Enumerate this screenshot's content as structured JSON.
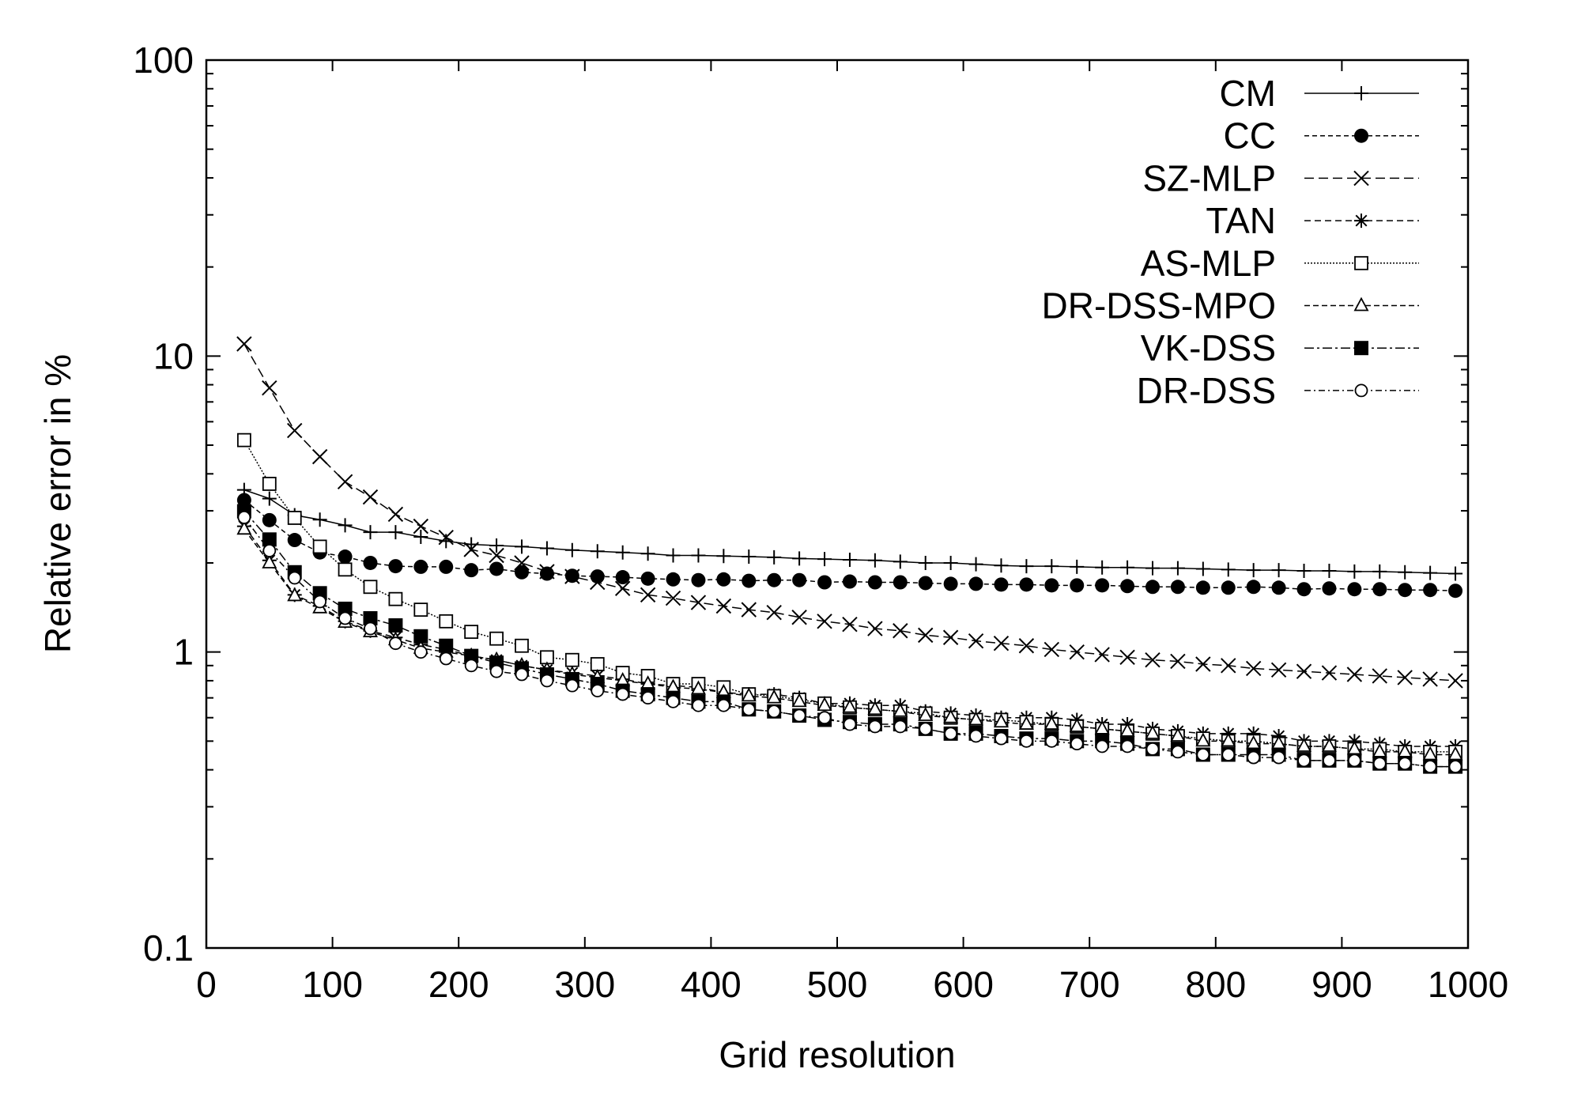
{
  "chart_data": {
    "type": "line",
    "title": "",
    "xlabel": "Grid resolution",
    "ylabel": "Relative error in %",
    "xlim": [
      0,
      1000
    ],
    "ylim": [
      0.1,
      100
    ],
    "yscale": "log",
    "grid": false,
    "legend_position": "top-right",
    "x_ticks": [
      "0",
      "100",
      "200",
      "300",
      "400",
      "500",
      "600",
      "700",
      "800",
      "900",
      "1000"
    ],
    "y_ticks": [
      "0.1",
      "1",
      "10",
      "100"
    ],
    "x": [
      30,
      50,
      70,
      90,
      110,
      130,
      150,
      170,
      190,
      210,
      230,
      250,
      270,
      290,
      310,
      330,
      350,
      370,
      390,
      410,
      430,
      450,
      470,
      490,
      510,
      530,
      550,
      570,
      590,
      610,
      630,
      650,
      670,
      690,
      710,
      730,
      750,
      770,
      790,
      810,
      830,
      850,
      870,
      890,
      910,
      930,
      950,
      970,
      990
    ],
    "series": [
      {
        "name": "CM",
        "marker": "plus",
        "dash": "",
        "values": [
          3.53,
          3.3,
          2.9,
          2.8,
          2.68,
          2.54,
          2.54,
          2.45,
          2.37,
          2.31,
          2.29,
          2.27,
          2.24,
          2.21,
          2.19,
          2.17,
          2.15,
          2.12,
          2.12,
          2.11,
          2.1,
          2.09,
          2.07,
          2.06,
          2.05,
          2.04,
          2.02,
          2.0,
          2.0,
          1.98,
          1.96,
          1.95,
          1.95,
          1.94,
          1.93,
          1.93,
          1.92,
          1.92,
          1.91,
          1.9,
          1.89,
          1.89,
          1.88,
          1.88,
          1.87,
          1.87,
          1.86,
          1.85,
          1.84
        ]
      },
      {
        "name": "CC",
        "marker": "filled-circle",
        "dash": "6,4",
        "values": [
          3.26,
          2.79,
          2.39,
          2.17,
          2.1,
          2.0,
          1.95,
          1.94,
          1.94,
          1.89,
          1.91,
          1.86,
          1.84,
          1.81,
          1.8,
          1.79,
          1.77,
          1.76,
          1.75,
          1.76,
          1.74,
          1.75,
          1.75,
          1.72,
          1.73,
          1.72,
          1.72,
          1.71,
          1.7,
          1.7,
          1.69,
          1.69,
          1.68,
          1.68,
          1.68,
          1.67,
          1.66,
          1.66,
          1.65,
          1.65,
          1.66,
          1.65,
          1.63,
          1.64,
          1.63,
          1.63,
          1.62,
          1.62,
          1.61
        ]
      },
      {
        "name": "SZ-MLP",
        "marker": "cross",
        "dash": "12,6",
        "values": [
          10.99,
          7.8,
          5.6,
          4.57,
          3.76,
          3.34,
          2.92,
          2.66,
          2.44,
          2.22,
          2.12,
          2.0,
          1.87,
          1.8,
          1.72,
          1.64,
          1.56,
          1.52,
          1.47,
          1.43,
          1.39,
          1.36,
          1.31,
          1.27,
          1.24,
          1.2,
          1.18,
          1.14,
          1.12,
          1.09,
          1.07,
          1.05,
          1.02,
          1.0,
          0.98,
          0.96,
          0.94,
          0.93,
          0.91,
          0.9,
          0.88,
          0.87,
          0.86,
          0.85,
          0.84,
          0.83,
          0.82,
          0.81,
          0.8
        ]
      },
      {
        "name": "TAN",
        "marker": "asterisk",
        "dash": "8,5",
        "values": [
          2.66,
          2.04,
          1.56,
          1.43,
          1.27,
          1.18,
          1.12,
          1.06,
          1.02,
          0.97,
          0.94,
          0.9,
          0.87,
          0.85,
          0.83,
          0.81,
          0.78,
          0.77,
          0.76,
          0.73,
          0.72,
          0.72,
          0.7,
          0.67,
          0.67,
          0.66,
          0.66,
          0.63,
          0.62,
          0.61,
          0.6,
          0.6,
          0.6,
          0.59,
          0.57,
          0.57,
          0.55,
          0.54,
          0.53,
          0.53,
          0.53,
          0.52,
          0.5,
          0.5,
          0.5,
          0.49,
          0.48,
          0.48,
          0.48
        ]
      },
      {
        "name": "AS-MLP",
        "marker": "open-square",
        "dash": "2,2",
        "values": [
          5.2,
          3.7,
          2.84,
          2.27,
          1.9,
          1.66,
          1.51,
          1.39,
          1.27,
          1.17,
          1.11,
          1.05,
          0.96,
          0.94,
          0.91,
          0.85,
          0.83,
          0.78,
          0.78,
          0.76,
          0.72,
          0.71,
          0.69,
          0.67,
          0.65,
          0.64,
          0.63,
          0.62,
          0.6,
          0.59,
          0.59,
          0.58,
          0.57,
          0.56,
          0.55,
          0.54,
          0.53,
          0.52,
          0.51,
          0.5,
          0.5,
          0.49,
          0.48,
          0.48,
          0.47,
          0.47,
          0.46,
          0.46,
          0.46
        ]
      },
      {
        "name": "DR-DSS-MPO",
        "marker": "open-triangle",
        "dash": "7,4",
        "values": [
          2.6,
          2.0,
          1.55,
          1.41,
          1.26,
          1.17,
          1.1,
          1.03,
          1.0,
          0.97,
          0.94,
          0.9,
          0.87,
          0.84,
          0.82,
          0.8,
          0.78,
          0.76,
          0.75,
          0.73,
          0.71,
          0.7,
          0.68,
          0.66,
          0.65,
          0.64,
          0.63,
          0.61,
          0.6,
          0.59,
          0.58,
          0.57,
          0.57,
          0.56,
          0.55,
          0.54,
          0.53,
          0.52,
          0.5,
          0.5,
          0.49,
          0.49,
          0.48,
          0.48,
          0.47,
          0.46,
          0.46,
          0.45,
          0.45
        ]
      },
      {
        "name": "VK-DSS",
        "marker": "filled-square",
        "dash": "12,4,3,4",
        "values": [
          2.99,
          2.4,
          1.86,
          1.58,
          1.4,
          1.3,
          1.23,
          1.13,
          1.05,
          0.97,
          0.92,
          0.88,
          0.84,
          0.81,
          0.78,
          0.74,
          0.72,
          0.7,
          0.68,
          0.68,
          0.64,
          0.63,
          0.61,
          0.59,
          0.58,
          0.57,
          0.57,
          0.55,
          0.53,
          0.53,
          0.52,
          0.51,
          0.51,
          0.5,
          0.5,
          0.49,
          0.47,
          0.47,
          0.45,
          0.45,
          0.45,
          0.45,
          0.43,
          0.43,
          0.43,
          0.42,
          0.42,
          0.41,
          0.41
        ]
      },
      {
        "name": "DR-DSS",
        "marker": "open-circle",
        "dash": "8,4,2,4",
        "values": [
          2.85,
          2.2,
          1.78,
          1.48,
          1.3,
          1.2,
          1.07,
          1.0,
          0.95,
          0.9,
          0.86,
          0.84,
          0.8,
          0.77,
          0.74,
          0.72,
          0.7,
          0.68,
          0.66,
          0.66,
          0.64,
          0.63,
          0.61,
          0.6,
          0.57,
          0.56,
          0.56,
          0.55,
          0.53,
          0.52,
          0.51,
          0.5,
          0.5,
          0.49,
          0.48,
          0.48,
          0.47,
          0.46,
          0.45,
          0.45,
          0.44,
          0.44,
          0.43,
          0.43,
          0.43,
          0.42,
          0.42,
          0.41,
          0.41
        ]
      }
    ]
  }
}
